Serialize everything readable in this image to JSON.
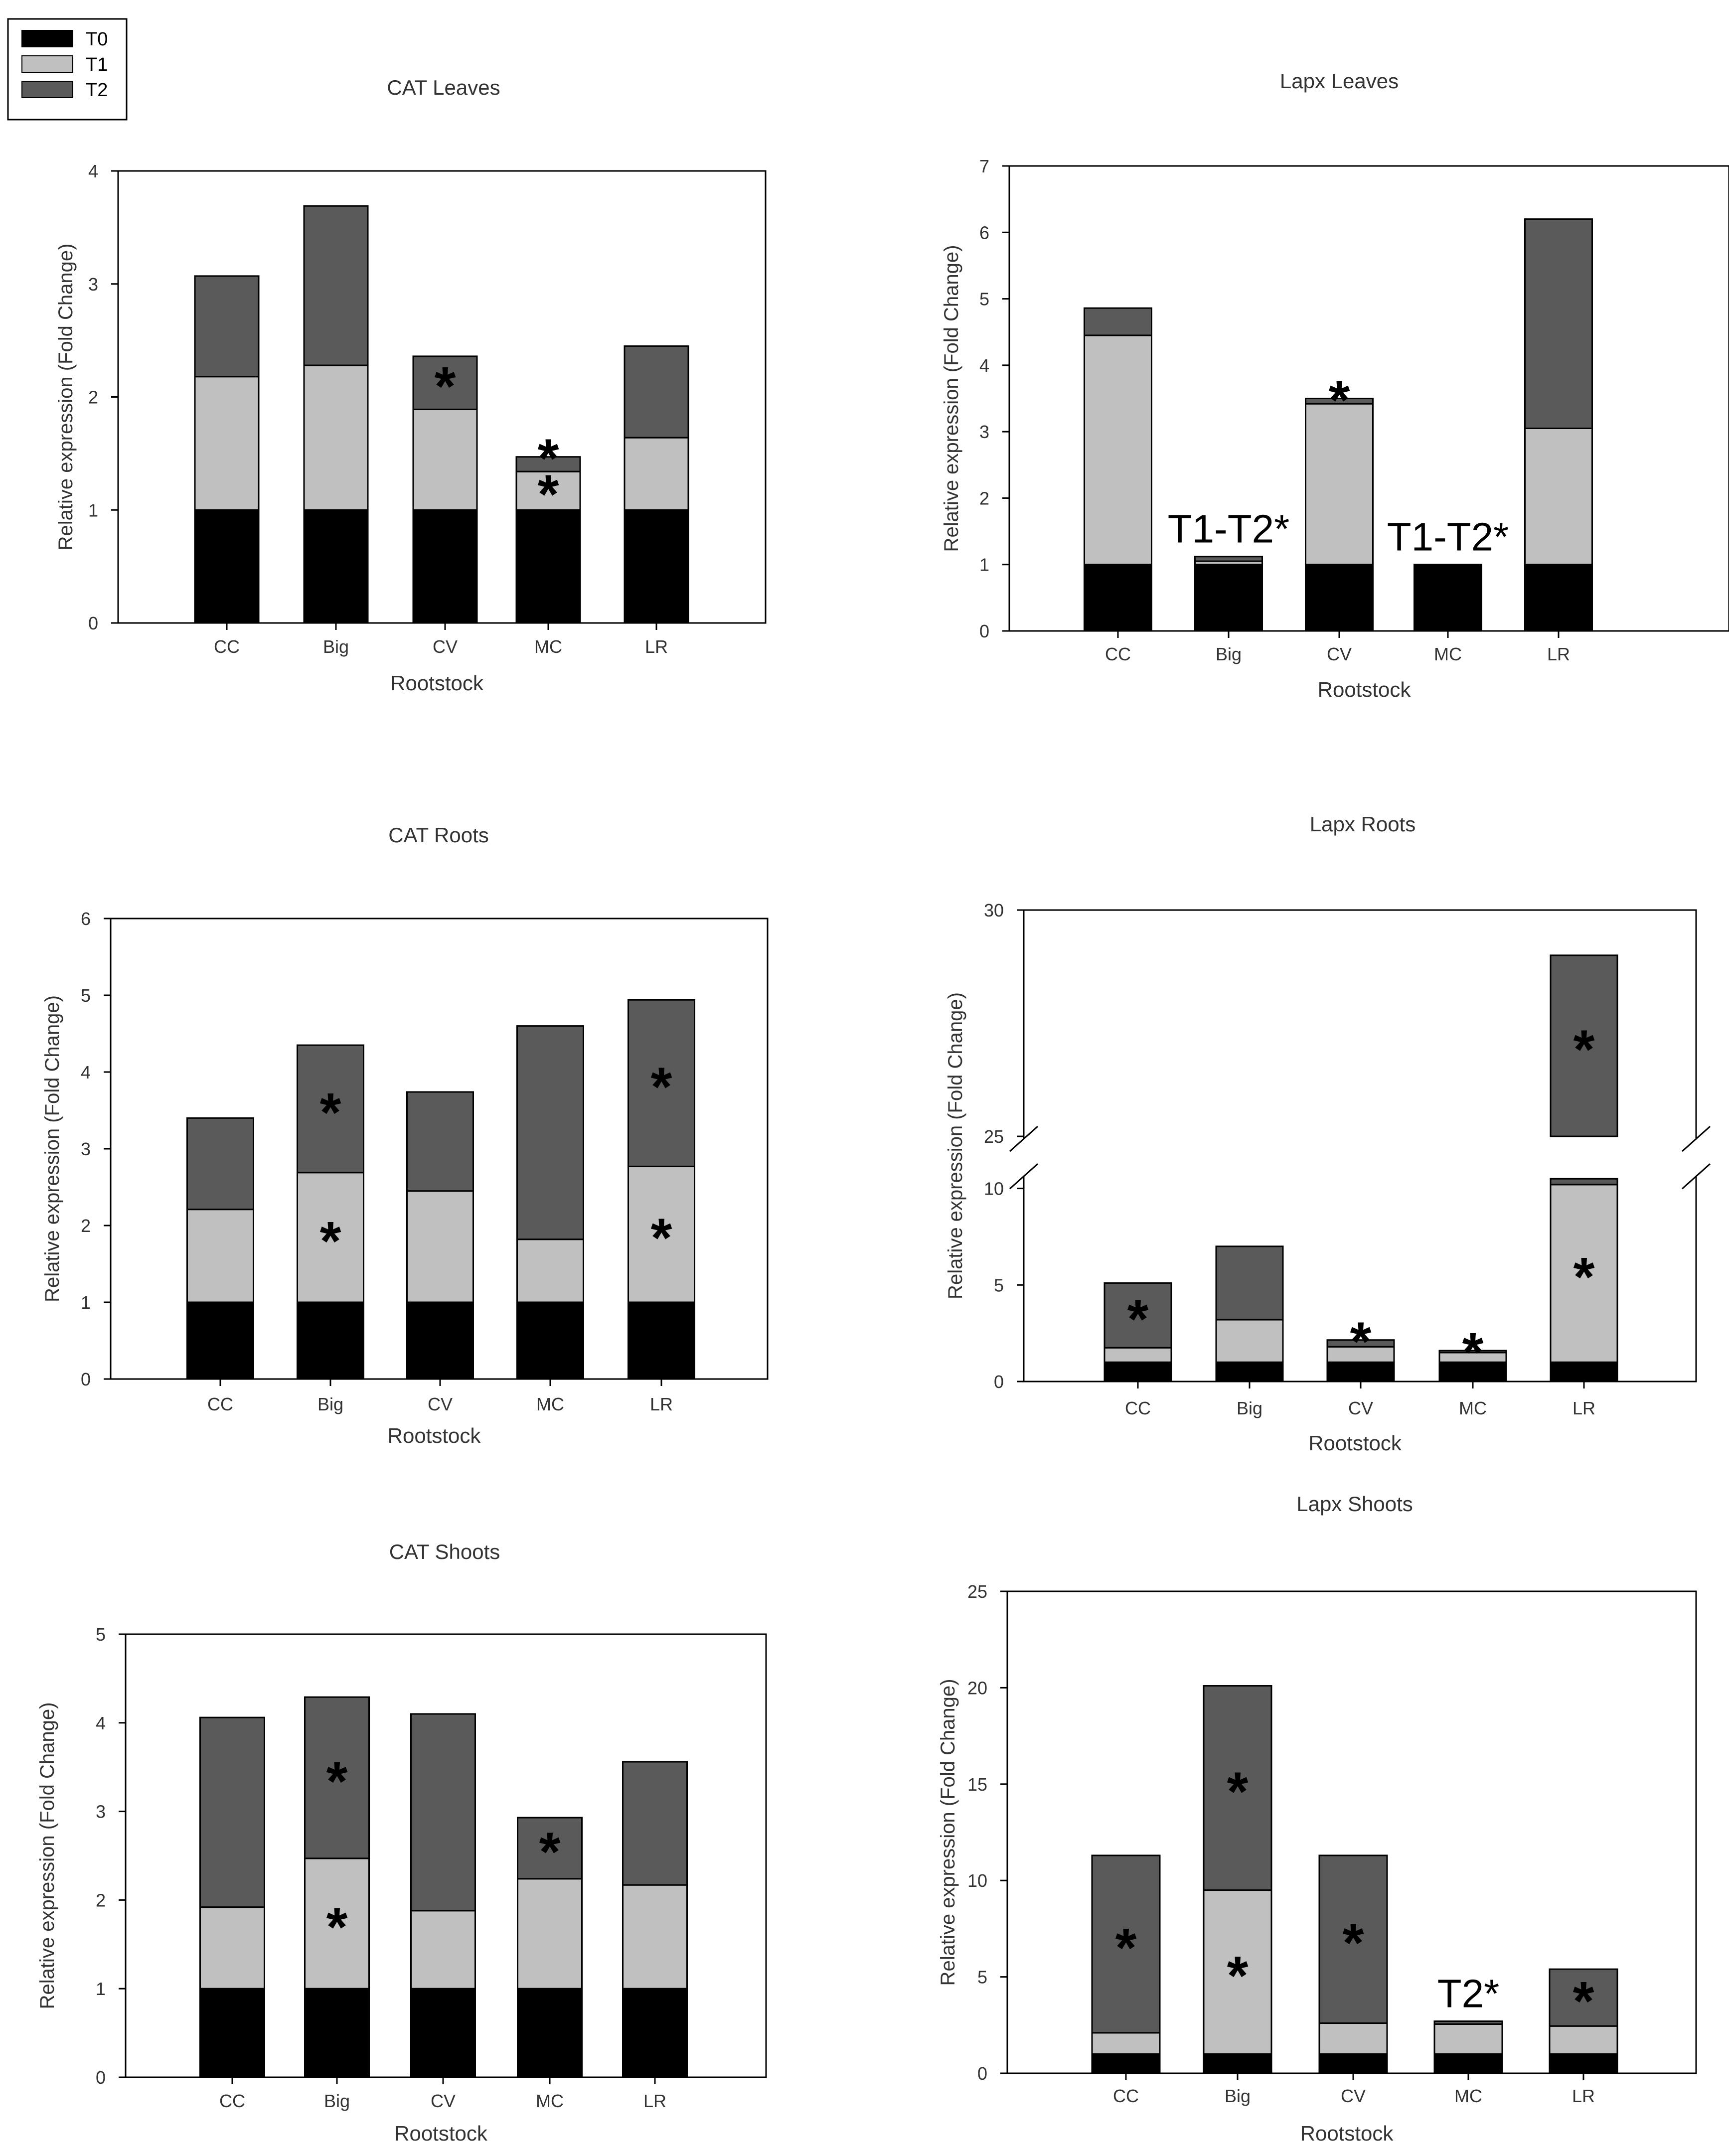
{
  "legend": {
    "entries": [
      {
        "label": "T0",
        "color": "#000000"
      },
      {
        "label": "T1",
        "color": "#c0c0c0"
      },
      {
        "label": "T2",
        "color": "#5a5a5a"
      }
    ]
  },
  "chart_data": [
    {
      "type": "bar",
      "stacked": true,
      "title": "CAT Leaves",
      "xlabel": "Rootstock",
      "ylabel": "Relative expression (Fold Change)",
      "ylim": [
        0,
        4
      ],
      "yticks": [
        0,
        1,
        2,
        3,
        4
      ],
      "categories": [
        "CC",
        "Big",
        "CV",
        "MC",
        "LR"
      ],
      "series": [
        {
          "name": "T0",
          "values": [
            1,
            1,
            1,
            1,
            1
          ]
        },
        {
          "name": "T1",
          "values": [
            1.18,
            1.28,
            0.89,
            0.34,
            0.64
          ]
        },
        {
          "name": "T2",
          "values": [
            0.89,
            1.41,
            0.47,
            0.13,
            0.81
          ]
        }
      ],
      "annotations": [
        {
          "category": "CV",
          "series": "T2",
          "text": "*"
        },
        {
          "category": "MC",
          "series": "T2",
          "text": "*"
        },
        {
          "category": "MC",
          "series": "T1",
          "text": "*"
        }
      ]
    },
    {
      "type": "bar",
      "stacked": true,
      "title": "Lapx Leaves",
      "xlabel": "Rootstock",
      "ylabel": "Relative expression (Fold Change)",
      "ylim": [
        0,
        7
      ],
      "yticks": [
        0,
        1,
        2,
        3,
        4,
        5,
        6,
        7
      ],
      "categories": [
        "CC",
        "Big",
        "CV",
        "MC",
        "LR"
      ],
      "series": [
        {
          "name": "T0",
          "values": [
            1,
            1,
            1,
            1,
            1
          ]
        },
        {
          "name": "T1",
          "values": [
            3.45,
            0.05,
            2.42,
            0.0,
            2.05
          ]
        },
        {
          "name": "T2",
          "values": [
            0.41,
            0.07,
            0.08,
            0.0,
            3.15
          ]
        }
      ],
      "annotations": [
        {
          "category": "CV",
          "series": "T2",
          "text": "*"
        },
        {
          "category": "Big",
          "series": "label",
          "text": "T1-T2*"
        },
        {
          "category": "MC",
          "series": "label",
          "text": "T1-T2*"
        }
      ]
    },
    {
      "type": "bar",
      "stacked": true,
      "title": "CAT Roots",
      "xlabel": "Rootstock",
      "ylabel": "Relative expression (Fold Change)",
      "ylim": [
        0,
        6
      ],
      "yticks": [
        0,
        1,
        2,
        3,
        4,
        5,
        6
      ],
      "categories": [
        "CC",
        "Big",
        "CV",
        "MC",
        "LR"
      ],
      "series": [
        {
          "name": "T0",
          "values": [
            1,
            1,
            1,
            1,
            1
          ]
        },
        {
          "name": "T1",
          "values": [
            1.21,
            1.69,
            1.45,
            0.82,
            1.77
          ]
        },
        {
          "name": "T2",
          "values": [
            1.19,
            1.66,
            1.29,
            2.78,
            2.17
          ]
        }
      ],
      "annotations": [
        {
          "category": "Big",
          "series": "T2",
          "text": "*"
        },
        {
          "category": "Big",
          "series": "T1",
          "text": "*"
        },
        {
          "category": "LR",
          "series": "T2",
          "text": "*"
        },
        {
          "category": "LR",
          "series": "T1",
          "text": "*"
        }
      ]
    },
    {
      "type": "bar",
      "stacked": true,
      "title": "Lapx Roots",
      "xlabel": "Rootstock",
      "ylabel": "Relative expression (Fold Change)",
      "ylim": [
        0,
        30
      ],
      "axis_break": [
        10.5,
        25
      ],
      "yticks": [
        0,
        5,
        10,
        25,
        30
      ],
      "categories": [
        "CC",
        "Big",
        "CV",
        "MC",
        "LR"
      ],
      "series": [
        {
          "name": "T0",
          "values": [
            1,
            1,
            1,
            1,
            1
          ]
        },
        {
          "name": "T1",
          "values": [
            0.75,
            2.2,
            0.8,
            0.5,
            9.2
          ]
        },
        {
          "name": "T2",
          "values": [
            3.35,
            3.8,
            0.35,
            0.1,
            18.8
          ]
        }
      ],
      "annotations": [
        {
          "category": "CC",
          "series": "T2",
          "text": "*"
        },
        {
          "category": "CV",
          "series": "T2",
          "text": "*"
        },
        {
          "category": "MC",
          "series": "T2",
          "text": "*"
        },
        {
          "category": "LR",
          "series": "T2",
          "text": "*"
        },
        {
          "category": "LR",
          "series": "T1",
          "text": "*"
        }
      ]
    },
    {
      "type": "bar",
      "stacked": true,
      "title": "CAT Shoots",
      "xlabel": "Rootstock",
      "ylabel": "Relative expression (Fold Change)",
      "ylim": [
        0,
        5
      ],
      "yticks": [
        0,
        1,
        2,
        3,
        4,
        5
      ],
      "categories": [
        "CC",
        "Big",
        "CV",
        "MC",
        "LR"
      ],
      "series": [
        {
          "name": "T0",
          "values": [
            1,
            1,
            1,
            1,
            1
          ]
        },
        {
          "name": "T1",
          "values": [
            0.92,
            1.47,
            0.88,
            1.24,
            1.17
          ]
        },
        {
          "name": "T2",
          "values": [
            2.14,
            1.82,
            2.22,
            0.69,
            1.39
          ]
        }
      ],
      "annotations": [
        {
          "category": "Big",
          "series": "T2",
          "text": "*"
        },
        {
          "category": "Big",
          "series": "T1",
          "text": "*"
        },
        {
          "category": "MC",
          "series": "T2",
          "text": "*"
        }
      ]
    },
    {
      "type": "bar",
      "stacked": true,
      "title": "Lapx Shoots",
      "xlabel": "Rootstock",
      "ylabel": "Relative expression (Fold Change)",
      "ylim": [
        0,
        25
      ],
      "yticks": [
        0,
        5,
        10,
        15,
        20,
        25
      ],
      "categories": [
        "CC",
        "Big",
        "CV",
        "MC",
        "LR"
      ],
      "series": [
        {
          "name": "T0",
          "values": [
            1,
            1,
            1,
            1,
            1
          ]
        },
        {
          "name": "T1",
          "values": [
            1.1,
            8.5,
            1.6,
            1.55,
            1.45
          ]
        },
        {
          "name": "T2",
          "values": [
            9.2,
            10.6,
            8.7,
            0.15,
            2.95
          ]
        }
      ],
      "annotations": [
        {
          "category": "CC",
          "series": "T2",
          "text": "*"
        },
        {
          "category": "Big",
          "series": "T2",
          "text": "*"
        },
        {
          "category": "Big",
          "series": "T1",
          "text": "*"
        },
        {
          "category": "CV",
          "series": "T2",
          "text": "*"
        },
        {
          "category": "LR",
          "series": "T2",
          "text": "*"
        },
        {
          "category": "MC",
          "series": "label",
          "text": "T2*"
        }
      ]
    }
  ]
}
